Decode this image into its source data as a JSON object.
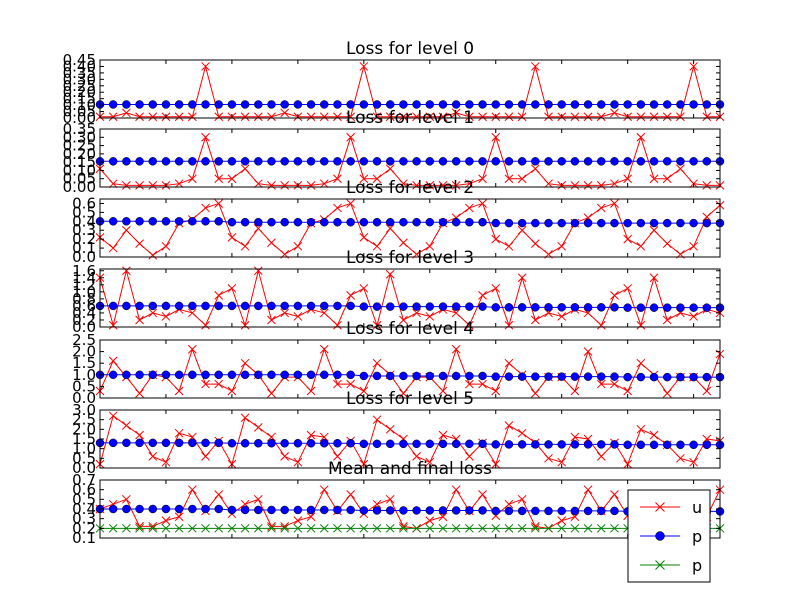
{
  "chart_data": [
    {
      "type": "line",
      "title": "Loss for level 0",
      "ylim": [
        0,
        0.45
      ],
      "yticks": [
        "0.00",
        "0.05",
        "0.10",
        "0.15",
        "0.20",
        "0.25",
        "0.30",
        "0.35",
        "0.40",
        "0.45"
      ],
      "series": [
        {
          "name": "u",
          "color": "#ff0000",
          "marker": "x",
          "values": [
            0.01,
            0.01,
            0.04,
            0.01,
            0.01,
            0.01,
            0.01,
            0.01,
            0.4,
            0.01,
            0.01,
            0.01,
            0.01,
            0.01,
            0.04,
            0.01,
            0.01,
            0.01,
            0.01,
            0.01,
            0.4,
            0.01,
            0.01,
            0.01,
            0.01,
            0.01,
            0.01,
            0.04,
            0.01,
            0.01,
            0.01,
            0.01,
            0.01,
            0.4,
            0.01,
            0.01,
            0.01,
            0.01,
            0.01,
            0.04,
            0.01,
            0.01,
            0.01,
            0.01,
            0.01,
            0.4,
            0.01,
            0.01
          ]
        },
        {
          "name": "p",
          "color": "#0000ff",
          "marker": "o",
          "values": [
            0.105,
            0.105,
            0.105,
            0.105,
            0.105,
            0.105,
            0.105,
            0.105,
            0.105,
            0.105,
            0.105,
            0.105,
            0.105,
            0.105,
            0.105,
            0.105,
            0.105,
            0.105,
            0.105,
            0.105,
            0.105,
            0.105,
            0.105,
            0.105,
            0.105,
            0.105,
            0.105,
            0.105,
            0.105,
            0.105,
            0.105,
            0.105,
            0.105,
            0.105,
            0.105,
            0.105,
            0.105,
            0.105,
            0.105,
            0.105,
            0.105,
            0.105,
            0.105,
            0.105,
            0.105,
            0.105,
            0.105,
            0.105
          ]
        }
      ]
    },
    {
      "type": "line",
      "title": "Loss for level 1",
      "ylim": [
        0,
        0.35
      ],
      "yticks": [
        "0.00",
        "0.05",
        "0.10",
        "0.15",
        "0.20",
        "0.25",
        "0.30",
        "0.35"
      ],
      "series": [
        {
          "name": "u",
          "color": "#ff0000",
          "marker": "x",
          "values": [
            0.11,
            0.02,
            0.01,
            0.01,
            0.01,
            0.01,
            0.02,
            0.05,
            0.3,
            0.05,
            0.05,
            0.11,
            0.02,
            0.01,
            0.01,
            0.01,
            0.01,
            0.02,
            0.05,
            0.3,
            0.05,
            0.05,
            0.11,
            0.02,
            0.01,
            0.01,
            0.01,
            0.01,
            0.02,
            0.05,
            0.3,
            0.05,
            0.05,
            0.11,
            0.02,
            0.01,
            0.01,
            0.01,
            0.01,
            0.02,
            0.05,
            0.3,
            0.05,
            0.05,
            0.11,
            0.02,
            0.01,
            0.01
          ]
        },
        {
          "name": "p",
          "color": "#0000ff",
          "marker": "o",
          "values": [
            0.155,
            0.155,
            0.155,
            0.155,
            0.155,
            0.155,
            0.155,
            0.155,
            0.155,
            0.155,
            0.155,
            0.155,
            0.155,
            0.155,
            0.155,
            0.155,
            0.155,
            0.155,
            0.155,
            0.155,
            0.155,
            0.155,
            0.155,
            0.155,
            0.155,
            0.155,
            0.155,
            0.155,
            0.155,
            0.155,
            0.155,
            0.155,
            0.155,
            0.155,
            0.155,
            0.155,
            0.155,
            0.155,
            0.155,
            0.155,
            0.155,
            0.155,
            0.155,
            0.155,
            0.155,
            0.155,
            0.155,
            0.155
          ]
        }
      ]
    },
    {
      "type": "line",
      "title": "Loss for level 2",
      "ylim": [
        0,
        0.65
      ],
      "yticks": [
        "0.0",
        "0.1",
        "0.2",
        "0.3",
        "0.4",
        "0.5",
        "0.6"
      ],
      "series": [
        {
          "name": "u",
          "color": "#ff0000",
          "marker": "x",
          "values": [
            0.22,
            0.1,
            0.3,
            0.15,
            0.02,
            0.12,
            0.38,
            0.42,
            0.55,
            0.6,
            0.22,
            0.12,
            0.32,
            0.16,
            0.03,
            0.12,
            0.38,
            0.42,
            0.55,
            0.6,
            0.22,
            0.12,
            0.32,
            0.16,
            0.03,
            0.12,
            0.38,
            0.44,
            0.55,
            0.6,
            0.2,
            0.12,
            0.3,
            0.15,
            0.03,
            0.12,
            0.38,
            0.44,
            0.55,
            0.6,
            0.2,
            0.12,
            0.3,
            0.15,
            0.03,
            0.12,
            0.45,
            0.58
          ]
        },
        {
          "name": "p",
          "color": "#0000ff",
          "marker": "o",
          "values": [
            0.4,
            0.4,
            0.4,
            0.4,
            0.4,
            0.4,
            0.4,
            0.4,
            0.4,
            0.4,
            0.39,
            0.39,
            0.39,
            0.39,
            0.39,
            0.39,
            0.39,
            0.39,
            0.39,
            0.39,
            0.39,
            0.39,
            0.39,
            0.39,
            0.39,
            0.39,
            0.39,
            0.39,
            0.39,
            0.39,
            0.38,
            0.38,
            0.38,
            0.38,
            0.38,
            0.38,
            0.38,
            0.38,
            0.38,
            0.38,
            0.38,
            0.38,
            0.38,
            0.38,
            0.38,
            0.38,
            0.38,
            0.38
          ]
        }
      ]
    },
    {
      "type": "line",
      "title": "Loss for level 3",
      "ylim": [
        0,
        1.65
      ],
      "yticks": [
        "0.0",
        "0.2",
        "0.4",
        "0.6",
        "0.8",
        "1.0",
        "1.2",
        "1.4",
        "1.6"
      ],
      "series": [
        {
          "name": "u",
          "color": "#ff0000",
          "marker": "x",
          "values": [
            1.4,
            0.05,
            1.6,
            0.2,
            0.4,
            0.3,
            0.5,
            0.4,
            0.05,
            0.9,
            1.1,
            0.05,
            1.6,
            0.2,
            0.4,
            0.3,
            0.5,
            0.4,
            0.05,
            0.9,
            1.1,
            0.05,
            1.5,
            0.2,
            0.4,
            0.3,
            0.5,
            0.4,
            0.05,
            0.9,
            1.1,
            0.05,
            1.4,
            0.2,
            0.4,
            0.3,
            0.5,
            0.4,
            0.05,
            0.9,
            1.1,
            0.05,
            1.4,
            0.2,
            0.4,
            0.3,
            0.5,
            0.4
          ]
        },
        {
          "name": "p",
          "color": "#0000ff",
          "marker": "o",
          "values": [
            0.6,
            0.6,
            0.6,
            0.6,
            0.6,
            0.6,
            0.6,
            0.6,
            0.6,
            0.6,
            0.6,
            0.6,
            0.6,
            0.6,
            0.6,
            0.6,
            0.6,
            0.6,
            0.6,
            0.6,
            0.58,
            0.58,
            0.58,
            0.58,
            0.58,
            0.58,
            0.58,
            0.58,
            0.58,
            0.58,
            0.56,
            0.56,
            0.56,
            0.56,
            0.56,
            0.56,
            0.56,
            0.56,
            0.56,
            0.56,
            0.55,
            0.55,
            0.55,
            0.55,
            0.55,
            0.55,
            0.55,
            0.55
          ]
        }
      ]
    },
    {
      "type": "line",
      "title": "Loss for level 4",
      "ylim": [
        0,
        2.5
      ],
      "yticks": [
        "0.0",
        "0.5",
        "1.0",
        "1.5",
        "2.0",
        "2.5"
      ],
      "series": [
        {
          "name": "u",
          "color": "#ff0000",
          "marker": "x",
          "values": [
            0.3,
            1.6,
            0.9,
            0.2,
            1.0,
            0.9,
            0.3,
            2.1,
            0.6,
            0.6,
            0.3,
            1.5,
            1.0,
            0.2,
            0.9,
            0.9,
            0.3,
            2.1,
            0.6,
            0.6,
            0.3,
            1.5,
            1.0,
            0.2,
            0.9,
            0.9,
            0.3,
            2.1,
            0.6,
            0.6,
            0.3,
            1.5,
            1.0,
            0.2,
            0.9,
            0.9,
            0.3,
            2.0,
            0.6,
            0.6,
            0.3,
            1.5,
            1.0,
            0.2,
            0.9,
            0.9,
            0.3,
            1.9
          ]
        },
        {
          "name": "p",
          "color": "#0000ff",
          "marker": "o",
          "values": [
            1.0,
            1.0,
            1.0,
            1.0,
            1.0,
            1.0,
            1.0,
            1.0,
            1.0,
            1.0,
            1.0,
            1.0,
            1.0,
            1.0,
            1.0,
            1.0,
            1.0,
            1.0,
            1.0,
            1.0,
            0.95,
            0.95,
            0.95,
            0.95,
            0.95,
            0.95,
            0.95,
            0.95,
            0.95,
            0.95,
            0.92,
            0.92,
            0.92,
            0.92,
            0.92,
            0.92,
            0.92,
            0.92,
            0.92,
            0.92,
            0.9,
            0.9,
            0.9,
            0.9,
            0.9,
            0.9,
            0.9,
            0.9
          ]
        }
      ]
    },
    {
      "type": "line",
      "title": "Loss for level 5",
      "ylim": [
        0,
        3.0
      ],
      "yticks": [
        "0.0",
        "0.5",
        "1.0",
        "1.5",
        "2.0",
        "2.5",
        "3.0"
      ],
      "series": [
        {
          "name": "u",
          "color": "#ff0000",
          "marker": "x",
          "values": [
            0.2,
            2.7,
            2.2,
            1.7,
            0.6,
            0.3,
            1.8,
            1.6,
            0.6,
            1.4,
            0.2,
            2.6,
            2.1,
            1.6,
            0.6,
            0.3,
            1.7,
            1.6,
            0.6,
            1.4,
            0.2,
            2.5,
            2.0,
            1.5,
            0.6,
            0.3,
            1.7,
            1.5,
            0.6,
            1.3,
            0.2,
            2.2,
            1.8,
            1.3,
            0.5,
            0.3,
            1.6,
            1.5,
            0.6,
            1.3,
            0.2,
            2.0,
            1.7,
            1.2,
            0.5,
            0.3,
            1.5,
            1.4
          ]
        },
        {
          "name": "p",
          "color": "#0000ff",
          "marker": "o",
          "values": [
            1.3,
            1.3,
            1.3,
            1.3,
            1.3,
            1.3,
            1.3,
            1.3,
            1.3,
            1.3,
            1.28,
            1.28,
            1.28,
            1.28,
            1.28,
            1.28,
            1.28,
            1.28,
            1.28,
            1.28,
            1.25,
            1.25,
            1.25,
            1.25,
            1.25,
            1.25,
            1.25,
            1.25,
            1.25,
            1.25,
            1.22,
            1.22,
            1.22,
            1.22,
            1.22,
            1.22,
            1.22,
            1.22,
            1.22,
            1.22,
            1.2,
            1.2,
            1.2,
            1.2,
            1.2,
            1.2,
            1.2,
            1.2
          ]
        }
      ]
    },
    {
      "type": "line",
      "title": "Mean and final loss",
      "ylim": [
        0.1,
        0.7
      ],
      "yticks": [
        "0.1",
        "0.2",
        "0.3",
        "0.4",
        "0.5",
        "0.6",
        "0.7"
      ],
      "legend": {
        "position": "lower-right",
        "entries": [
          "u",
          "p",
          "p"
        ]
      },
      "series": [
        {
          "name": "u",
          "color": "#ff0000",
          "marker": "x",
          "values": [
            0.4,
            0.45,
            0.5,
            0.22,
            0.22,
            0.28,
            0.32,
            0.6,
            0.38,
            0.55,
            0.35,
            0.45,
            0.5,
            0.22,
            0.22,
            0.28,
            0.32,
            0.6,
            0.38,
            0.55,
            0.35,
            0.45,
            0.5,
            0.22,
            0.2,
            0.28,
            0.32,
            0.6,
            0.38,
            0.55,
            0.33,
            0.45,
            0.5,
            0.22,
            0.2,
            0.28,
            0.32,
            0.6,
            0.38,
            0.55,
            0.33,
            0.45,
            0.5,
            0.22,
            0.2,
            0.28,
            0.32,
            0.6
          ]
        },
        {
          "name": "p",
          "color": "#0000ff",
          "marker": "o",
          "values": [
            0.4,
            0.4,
            0.4,
            0.4,
            0.4,
            0.4,
            0.4,
            0.4,
            0.4,
            0.4,
            0.39,
            0.39,
            0.39,
            0.39,
            0.39,
            0.39,
            0.39,
            0.39,
            0.39,
            0.39,
            0.385,
            0.385,
            0.385,
            0.385,
            0.385,
            0.385,
            0.385,
            0.385,
            0.385,
            0.385,
            0.38,
            0.38,
            0.38,
            0.38,
            0.38,
            0.38,
            0.38,
            0.38,
            0.38,
            0.38,
            0.375,
            0.375,
            0.375,
            0.375,
            0.375,
            0.375,
            0.375,
            0.375
          ]
        },
        {
          "name": "p",
          "color": "#008000",
          "marker": "x",
          "values": [
            0.2,
            0.2,
            0.2,
            0.2,
            0.2,
            0.2,
            0.2,
            0.2,
            0.2,
            0.2,
            0.2,
            0.2,
            0.2,
            0.2,
            0.2,
            0.2,
            0.2,
            0.2,
            0.2,
            0.2,
            0.2,
            0.2,
            0.2,
            0.2,
            0.2,
            0.2,
            0.2,
            0.2,
            0.2,
            0.2,
            0.2,
            0.2,
            0.2,
            0.2,
            0.2,
            0.2,
            0.2,
            0.2,
            0.2,
            0.2,
            0.2,
            0.2,
            0.2,
            0.2,
            0.2,
            0.2,
            0.2,
            0.2
          ]
        }
      ]
    }
  ]
}
